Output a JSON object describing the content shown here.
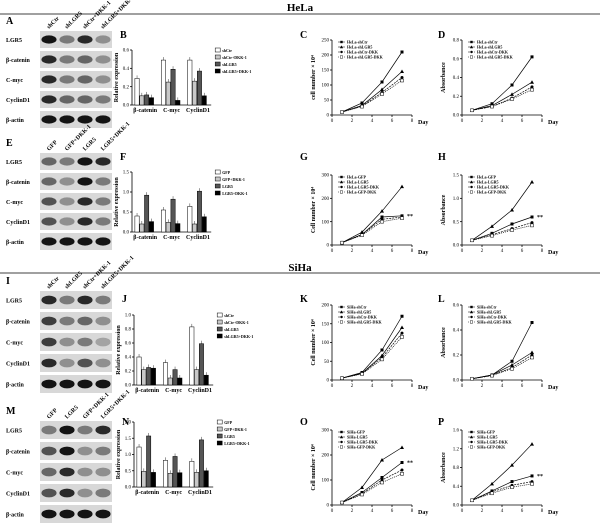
{
  "sections": [
    {
      "id": "hela",
      "title": "HeLa"
    },
    {
      "id": "siha",
      "title": "SiHa"
    }
  ],
  "panels": {
    "A": {
      "label": "A",
      "lanes": [
        "shCtr",
        "shLGR5",
        "shCtr+DKK-1",
        "shLGR5+DKK-1"
      ],
      "rows": [
        "LGR5",
        "β-catenin",
        "C-myc",
        "CyclinD1",
        "β-actin"
      ]
    },
    "E": {
      "label": "E",
      "lanes": [
        "GFP",
        "GFP+DKK-1",
        "LGR5",
        "LGR5+DKK-1"
      ],
      "rows": [
        "LGR5",
        "β-catenin",
        "C-myc",
        "CyclinD1",
        "β-actin"
      ]
    },
    "I": {
      "label": "I",
      "lanes": [
        "shCtr",
        "shLGR5",
        "shCtr+DKK-1",
        "shLGR5+DKK-1"
      ],
      "rows": [
        "LGR5",
        "β-catenin",
        "C-myc",
        "CyclinD1",
        "β-actin"
      ]
    },
    "M": {
      "label": "M",
      "lanes": [
        "GFP",
        "LGR5",
        "GFP+DKK-1",
        "LGR5+DKK-1"
      ],
      "rows": [
        "LGR5",
        "β-catenin",
        "C-myc",
        "CyclinD1",
        "β-actin"
      ]
    }
  },
  "chart_data": [
    {
      "id": "B",
      "label": "B",
      "type": "bar",
      "categories": [
        "β-catenin",
        "C-myc",
        "CyclinD1"
      ],
      "ylabel": "Relative expression",
      "ylim": [
        0,
        0.6
      ],
      "yticks": [
        "0.0",
        "0.2",
        "0.4",
        "0.6"
      ],
      "series": [
        {
          "name": "shCtr",
          "values": [
            0.29,
            0.49,
            0.49
          ]
        },
        {
          "name": "shCtr+DKK-1",
          "values": [
            0.1,
            0.25,
            0.26
          ]
        },
        {
          "name": "shLGR5",
          "values": [
            0.11,
            0.39,
            0.37
          ]
        },
        {
          "name": "shLGR5+DKK-1",
          "values": [
            0.08,
            0.05,
            0.1
          ]
        }
      ]
    },
    {
      "id": "F",
      "label": "F",
      "type": "bar",
      "categories": [
        "β-catenin",
        "C-myc",
        "CyclinD1"
      ],
      "ylabel": "Relative expression",
      "ylim": [
        0,
        1.5
      ],
      "yticks": [
        "0.0",
        "0.5",
        "1.0",
        "1.5"
      ],
      "series": [
        {
          "name": "GFP",
          "values": [
            0.4,
            0.55,
            0.64
          ]
        },
        {
          "name": "GFP+DKK-1",
          "values": [
            0.2,
            0.24,
            0.2
          ]
        },
        {
          "name": "LGR5",
          "values": [
            0.92,
            0.82,
            1.02
          ]
        },
        {
          "name": "LGR5+DKK-1",
          "values": [
            0.26,
            0.21,
            0.38
          ]
        }
      ]
    },
    {
      "id": "J",
      "label": "J",
      "type": "bar",
      "categories": [
        "β-catenin",
        "C-myc",
        "CyclinD1"
      ],
      "ylabel": "Relative expression",
      "ylim": [
        0,
        1.0
      ],
      "yticks": [
        "0.0",
        "0.2",
        "0.4",
        "0.6",
        "0.8",
        "1.0"
      ],
      "series": [
        {
          "name": "shCtr",
          "values": [
            0.4,
            0.32,
            0.83
          ]
        },
        {
          "name": "shCtr+DKK-1",
          "values": [
            0.22,
            0.1,
            0.22
          ]
        },
        {
          "name": "shLGR5",
          "values": [
            0.25,
            0.22,
            0.59
          ]
        },
        {
          "name": "shLGR5+DKK-1",
          "values": [
            0.24,
            0.1,
            0.14
          ]
        }
      ]
    },
    {
      "id": "N",
      "label": "N",
      "type": "bar",
      "categories": [
        "β-catenin",
        "C-myc",
        "CyclinD1"
      ],
      "ylabel": "Relative expression",
      "ylim": [
        0,
        2.0
      ],
      "yticks": [
        "0.0",
        "0.5",
        "1.0",
        "1.5",
        "2.0"
      ],
      "series": [
        {
          "name": "GFP",
          "values": [
            1.23,
            0.82,
            0.79
          ]
        },
        {
          "name": "GFP+DKK-1",
          "values": [
            0.48,
            0.42,
            0.45
          ]
        },
        {
          "name": "LGR5",
          "values": [
            1.57,
            0.94,
            1.45
          ]
        },
        {
          "name": "LGR5+DKK-1",
          "values": [
            0.45,
            0.44,
            0.5
          ]
        }
      ]
    },
    {
      "id": "C",
      "label": "C",
      "type": "line",
      "xlabel": "Day",
      "ylabel": "cell number × 10⁴",
      "x": [
        1,
        3,
        5,
        7
      ],
      "xlim": [
        0,
        8
      ],
      "xticks": [
        "0",
        "2",
        "4",
        "6",
        "8"
      ],
      "ylim": [
        0,
        250
      ],
      "yticks": [
        "0",
        "50",
        "100",
        "150",
        "200",
        "250"
      ],
      "series": [
        {
          "name": "HeLa-shCtr",
          "marker": "square",
          "values": [
            10,
            40,
            110,
            210
          ]
        },
        {
          "name": "HeLa-shLGR5",
          "marker": "triangle",
          "values": [
            10,
            32,
            85,
            145
          ]
        },
        {
          "name": "HeLa-shCtr-DKK",
          "marker": "circle",
          "values": [
            10,
            30,
            75,
            125
          ]
        },
        {
          "name": "HeLa-shLGR5-DKK",
          "marker": "openSquare",
          "values": [
            10,
            28,
            70,
            115
          ]
        }
      ]
    },
    {
      "id": "D",
      "label": "D",
      "type": "line",
      "xlabel": "Day",
      "ylabel": "Absorbance",
      "x": [
        1,
        3,
        5,
        7
      ],
      "xlim": [
        0,
        8
      ],
      "xticks": [
        "0",
        "2",
        "4",
        "6",
        "8"
      ],
      "ylim": [
        0,
        0.8
      ],
      "yticks": [
        "0.0",
        "0.2",
        "0.4",
        "0.6",
        "0.8"
      ],
      "series": [
        {
          "name": "HeLa-shCtr",
          "marker": "square",
          "values": [
            0.05,
            0.12,
            0.32,
            0.62
          ]
        },
        {
          "name": "HeLa-shLGR5",
          "marker": "triangle",
          "values": [
            0.05,
            0.1,
            0.22,
            0.35
          ]
        },
        {
          "name": "HeLa-shCtr-DKK",
          "marker": "circle",
          "values": [
            0.05,
            0.09,
            0.18,
            0.3
          ]
        },
        {
          "name": "HeLa-shLGR5-DKK",
          "marker": "openSquare",
          "values": [
            0.05,
            0.09,
            0.17,
            0.27
          ]
        }
      ]
    },
    {
      "id": "G",
      "label": "G",
      "type": "line",
      "xlabel": "Day",
      "ylabel": "Cell number × 10⁴",
      "x": [
        1,
        3,
        5,
        7
      ],
      "xlim": [
        0,
        8
      ],
      "xticks": [
        "0",
        "2",
        "4",
        "6",
        "8"
      ],
      "ylim": [
        0,
        300
      ],
      "yticks": [
        "0",
        "100",
        "200",
        "300"
      ],
      "annotation": "**",
      "series": [
        {
          "name": "HeLa-GFP",
          "marker": "square",
          "values": [
            10,
            45,
            120,
            125
          ]
        },
        {
          "name": "HeLa-LGR5",
          "marker": "triangle",
          "values": [
            10,
            55,
            145,
            250
          ]
        },
        {
          "name": "HeLa-LGR5-DKK",
          "marker": "circle",
          "values": [
            10,
            45,
            110,
            120
          ]
        },
        {
          "name": "HeLa-GFP-DKK",
          "marker": "openSquare",
          "values": [
            10,
            42,
            100,
            115
          ]
        }
      ]
    },
    {
      "id": "H",
      "label": "H",
      "type": "line",
      "xlabel": "Day",
      "ylabel": "Absorbance",
      "x": [
        1,
        3,
        5,
        7
      ],
      "xlim": [
        0,
        8
      ],
      "xticks": [
        "0",
        "2",
        "4",
        "6",
        "8"
      ],
      "ylim": [
        0,
        1.5
      ],
      "yticks": [
        "0.0",
        "0.5",
        "1.0",
        "1.5"
      ],
      "annotation": "**",
      "series": [
        {
          "name": "HeLa-GFP",
          "marker": "square",
          "values": [
            0.1,
            0.25,
            0.45,
            0.6
          ]
        },
        {
          "name": "HeLa-LGR5",
          "marker": "triangle",
          "values": [
            0.1,
            0.4,
            0.75,
            1.35
          ]
        },
        {
          "name": "HeLa-LGR5-DKK",
          "marker": "circle",
          "values": [
            0.1,
            0.22,
            0.35,
            0.48
          ]
        },
        {
          "name": "HeLa-GFP-DKK",
          "marker": "openSquare",
          "values": [
            0.1,
            0.2,
            0.32,
            0.42
          ]
        }
      ]
    },
    {
      "id": "K",
      "label": "K",
      "type": "line",
      "xlabel": "Day",
      "ylabel": "Cell number × 10⁴",
      "x": [
        1,
        3,
        5,
        7
      ],
      "xlim": [
        0,
        8
      ],
      "xticks": [
        "0",
        "2",
        "4",
        "6",
        "8"
      ],
      "ylim": [
        0,
        200
      ],
      "yticks": [
        "0",
        "50",
        "100",
        "150",
        "200"
      ],
      "series": [
        {
          "name": "SiHa-shCtr",
          "marker": "square",
          "values": [
            5,
            20,
            80,
            170
          ]
        },
        {
          "name": "SiHa-shLGR5",
          "marker": "triangle",
          "values": [
            5,
            18,
            65,
            140
          ]
        },
        {
          "name": "SiHa-shCtr-DKK",
          "marker": "circle",
          "values": [
            5,
            17,
            60,
            125
          ]
        },
        {
          "name": "SiHa-shLGR5-DKK",
          "marker": "openSquare",
          "values": [
            5,
            16,
            55,
            115
          ]
        }
      ]
    },
    {
      "id": "L",
      "label": "L",
      "type": "line",
      "xlabel": "Day",
      "ylabel": "Absorbance",
      "x": [
        1,
        3,
        5,
        7
      ],
      "xlim": [
        0,
        8
      ],
      "xticks": [
        "0",
        "2",
        "4",
        "6",
        "8"
      ],
      "ylim": [
        0,
        0.6
      ],
      "yticks": [
        "0.0",
        "0.2",
        "0.4",
        "0.6"
      ],
      "series": [
        {
          "name": "SiHa-shCtr",
          "marker": "square",
          "values": [
            0.01,
            0.04,
            0.15,
            0.46
          ]
        },
        {
          "name": "SiHa-shLGR5",
          "marker": "triangle",
          "values": [
            0.01,
            0.04,
            0.12,
            0.22
          ]
        },
        {
          "name": "SiHa-shCtr-DKK",
          "marker": "circle",
          "values": [
            0.01,
            0.035,
            0.1,
            0.2
          ]
        },
        {
          "name": "SiHa-shLGR5-DKK",
          "marker": "openSquare",
          "values": [
            0.01,
            0.035,
            0.09,
            0.18
          ]
        }
      ]
    },
    {
      "id": "O",
      "label": "O",
      "type": "line",
      "xlabel": "Day",
      "ylabel": "Cell number × 10⁴",
      "x": [
        1,
        3,
        5,
        7
      ],
      "xlim": [
        0,
        8
      ],
      "xticks": [
        "0",
        "2",
        "4",
        "6",
        "8"
      ],
      "ylim": [
        0,
        300
      ],
      "yticks": [
        "0",
        "100",
        "200",
        "300"
      ],
      "annotation": "**",
      "series": [
        {
          "name": "SiHa-GFP",
          "marker": "square",
          "values": [
            10,
            50,
            110,
            170
          ]
        },
        {
          "name": "SiHa-LGR5",
          "marker": "triangle",
          "values": [
            10,
            70,
            180,
            230
          ]
        },
        {
          "name": "SiHa-LGR5-DKK",
          "marker": "circle",
          "values": [
            10,
            45,
            100,
            140
          ]
        },
        {
          "name": "SiHa-GFP-DKK",
          "marker": "openSquare",
          "values": [
            10,
            42,
            90,
            125
          ]
        }
      ]
    },
    {
      "id": "P",
      "label": "P",
      "type": "line",
      "xlabel": "Day",
      "ylabel": "Absorbance",
      "x": [
        1,
        3,
        5,
        7
      ],
      "xlim": [
        0,
        8
      ],
      "xticks": [
        "0",
        "2",
        "4",
        "6",
        "8"
      ],
      "ylim": [
        0,
        1.6
      ],
      "yticks": [
        "0.0",
        "0.4",
        "0.8",
        "1.2",
        "1.6"
      ],
      "annotation": "**",
      "series": [
        {
          "name": "SiHa-GFP",
          "marker": "square",
          "values": [
            0.1,
            0.3,
            0.5,
            0.62
          ]
        },
        {
          "name": "SiHa-LGR5",
          "marker": "triangle",
          "values": [
            0.1,
            0.45,
            0.85,
            1.3
          ]
        },
        {
          "name": "SiHa-LGR5-DKK",
          "marker": "circle",
          "values": [
            0.1,
            0.28,
            0.42,
            0.5
          ]
        },
        {
          "name": "SiHa-GFP-DKK",
          "marker": "openSquare",
          "values": [
            0.1,
            0.25,
            0.38,
            0.45
          ]
        }
      ]
    }
  ]
}
